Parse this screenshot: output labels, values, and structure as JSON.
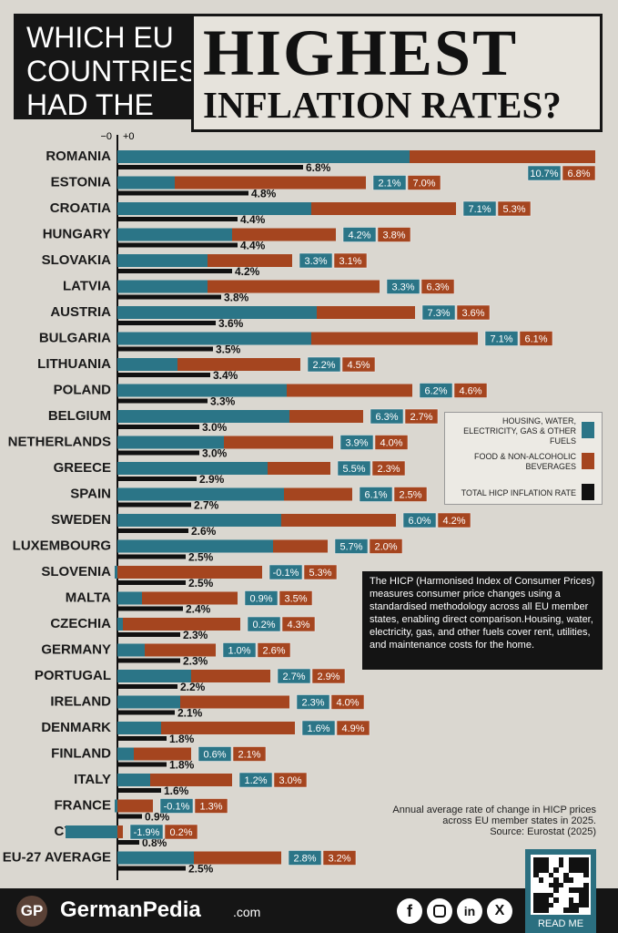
{
  "chart_data": {
    "type": "bar",
    "title": [
      "WHICH EU COUNTRIES HAD THE",
      "HIGHEST",
      "INFLATION RATES?"
    ],
    "axis_labels": [
      "−0",
      "+0"
    ],
    "categories": [
      "ROMANIA",
      "ESTONIA",
      "CROATIA",
      "HUNGARY",
      "SLOVAKIA",
      "LATVIA",
      "AUSTRIA",
      "BULGARIA",
      "LITHUANIA",
      "POLAND",
      "BELGIUM",
      "NETHERLANDS",
      "GREECE",
      "SPAIN",
      "SWEDEN",
      "LUXEMBOURG",
      "SLOVENIA",
      "MALTA",
      "CZECHIA",
      "GERMANY",
      "PORTUGAL",
      "IRELAND",
      "DENMARK",
      "FINLAND",
      "ITALY",
      "FRANCE",
      "CYPRUS",
      "EU-27 AVERAGE"
    ],
    "series": [
      {
        "name": "HOUSING, WATER, ELECTRICITY, GAS & OTHER FUELS",
        "color": "#2b7587",
        "values": [
          10.7,
          2.1,
          7.1,
          4.2,
          3.3,
          3.3,
          7.3,
          7.1,
          2.2,
          6.2,
          6.3,
          3.9,
          5.5,
          6.1,
          6.0,
          5.7,
          -0.1,
          0.9,
          0.2,
          1.0,
          2.7,
          2.3,
          1.6,
          0.6,
          1.2,
          -0.1,
          -1.9,
          2.8
        ],
        "value_labels": [
          "10.7%",
          "2.1%",
          "7.1%",
          "4.2%",
          "3.3%",
          "3.3%",
          "7.3%",
          "7.1%",
          "2.2%",
          "6.2%",
          "6.3%",
          "3.9%",
          "5.5%",
          "6.1%",
          "6.0%",
          "5.7%",
          "-0.1%",
          "0.9%",
          "0.2%",
          "1.0%",
          "2.7%",
          "2.3%",
          "1.6%",
          "0.6%",
          "1.2%",
          "-0.1%",
          "-1.9%",
          "2.8%"
        ]
      },
      {
        "name": "FOOD & NON-ALCOHOLIC BEVERAGES",
        "color": "#a5451f",
        "values": [
          6.8,
          7.0,
          5.3,
          3.8,
          3.1,
          6.3,
          3.6,
          6.1,
          4.5,
          4.6,
          2.7,
          4.0,
          2.3,
          2.5,
          4.2,
          2.0,
          5.3,
          3.5,
          4.3,
          2.6,
          2.9,
          4.0,
          4.9,
          2.1,
          3.0,
          1.3,
          0.2,
          3.2
        ],
        "value_labels": [
          "6.8%",
          "7.0%",
          "5.3%",
          "3.8%",
          "3.1%",
          "6.3%",
          "3.6%",
          "6.1%",
          "4.5%",
          "4.6%",
          "2.7%",
          "4.0%",
          "2.3%",
          "2.5%",
          "4.2%",
          "2.0%",
          "5.3%",
          "3.5%",
          "4.3%",
          "2.6%",
          "2.9%",
          "4.0%",
          "4.9%",
          "2.1%",
          "3.0%",
          "1.3%",
          "0.2%",
          "3.2%"
        ]
      },
      {
        "name": "TOTAL HICP INFLATION RATE",
        "color": "#111111",
        "values": [
          6.8,
          4.8,
          4.4,
          4.4,
          4.2,
          3.8,
          3.6,
          3.5,
          3.4,
          3.3,
          3.0,
          3.0,
          2.9,
          2.7,
          2.6,
          2.5,
          2.5,
          2.4,
          2.3,
          2.3,
          2.2,
          2.1,
          1.8,
          1.8,
          1.6,
          0.9,
          0.8,
          2.5
        ],
        "value_labels": [
          "6.8%",
          "4.8%",
          "4.4%",
          "4.4%",
          "4.2%",
          "3.8%",
          "3.6%",
          "3.5%",
          "3.4%",
          "3.3%",
          "3.0%",
          "3.0%",
          "2.9%",
          "2.7%",
          "2.6%",
          "2.5%",
          "2.5%",
          "2.4%",
          "2.3%",
          "2.3%",
          "2.2%",
          "2.1%",
          "1.8%",
          "1.8%",
          "1.6%",
          "0.9%",
          "0.8%",
          "2.5%"
        ]
      }
    ],
    "note": "The HICP (Harmonised Index of Consumer Prices) measures consumer price changes using a standardised methodology across all EU member states, enabling direct comparison.Housing, water, electricity, gas, and other fuels cover rent, utilities, and maintenance costs for the home.",
    "source": [
      "Annual average rate of change in HICP prices",
      "across EU member states in 2025.",
      "Source: Eurostat (2025)"
    ]
  },
  "footer": {
    "logo": "GP",
    "brand": "GermanPedia",
    "domain": ".com",
    "read_me": "READ ME",
    "social": [
      "f",
      "in",
      "X"
    ]
  }
}
